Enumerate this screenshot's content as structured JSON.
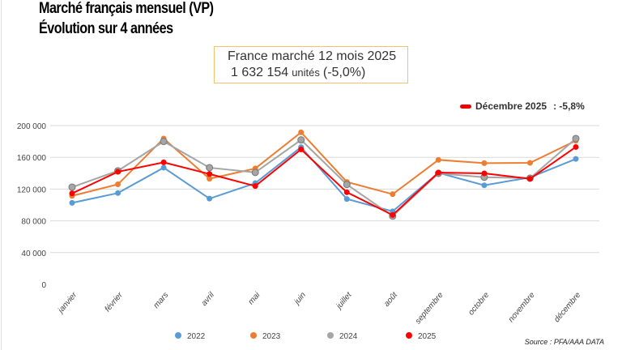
{
  "title_line1": "Marché français mensuel (VP)",
  "title_line2": "Évolution sur 4 années",
  "summary": {
    "line1": "France marché 12 mois 2025",
    "units_value": "1 632 154",
    "units_label": "unités",
    "change": "(-5,0%)"
  },
  "december": {
    "label": "Décembre 2025",
    "value": ": -5,8%",
    "color": "#e00000"
  },
  "source": "Source : PFA/AAA DATA",
  "chart_data": {
    "type": "line",
    "categories": [
      "janvier",
      "février",
      "mars",
      "avril",
      "mai",
      "juin",
      "juillet",
      "août",
      "septembre",
      "octobre",
      "novembre",
      "décembre"
    ],
    "ylim": [
      0,
      200000
    ],
    "yticks": [
      0,
      40000,
      80000,
      120000,
      160000,
      200000
    ],
    "ytick_labels": [
      "0",
      "40 000",
      "80 000",
      "120 000",
      "160 000",
      "200 000"
    ],
    "grid": true,
    "legend": "bottom",
    "series": [
      {
        "name": "2022",
        "color": "#5b9bd5",
        "values": [
          102700,
          115000,
          147000,
          108000,
          127500,
          172800,
          107500,
          92000,
          140500,
          124800,
          134700,
          158000
        ]
      },
      {
        "name": "2023",
        "color": "#ed7d31",
        "values": [
          111500,
          126000,
          183700,
          133000,
          146000,
          191500,
          129000,
          113600,
          156800,
          152700,
          153000,
          181000
        ]
      },
      {
        "name": "2024",
        "color": "#a5a5a5",
        "values": [
          122400,
          143000,
          180000,
          147000,
          141000,
          182000,
          125800,
          86000,
          139800,
          135000,
          133700,
          183700
        ]
      },
      {
        "name": "2025",
        "color": "#ff0000",
        "values": [
          114600,
          141800,
          153700,
          139000,
          123800,
          170000,
          116000,
          87400,
          140800,
          139800,
          133000,
          173000
        ]
      }
    ]
  }
}
